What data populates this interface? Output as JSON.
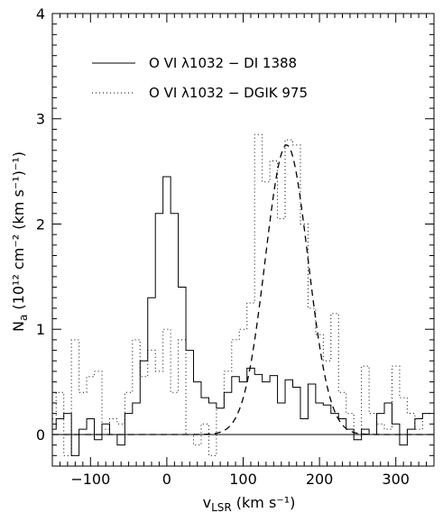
{
  "chart_data": {
    "type": "line",
    "xlim": [
      -150,
      350
    ],
    "ylim": [
      -0.3,
      4.0
    ],
    "x_ticks": [
      "-100",
      "0",
      "100",
      "200",
      "300"
    ],
    "y_ticks": [
      "0",
      "1",
      "2",
      "3",
      "4"
    ],
    "xlabel": {
      "main": "v",
      "sub": "LSR",
      "rest": " (km s⁻¹)"
    },
    "ylabel": {
      "main": "N",
      "sub": "a",
      "rest": " (10¹² cm⁻² (km s⁻¹)⁻¹)"
    },
    "legend": {
      "placement": "top-left"
    },
    "series": [
      {
        "name": "O VI λ1032 − DI 1388",
        "style": "solid",
        "x": [
          -150,
          -140,
          -130,
          -120,
          -110,
          -100,
          -90,
          -80,
          -70,
          -60,
          -50,
          -40,
          -30,
          -20,
          -10,
          0,
          10,
          20,
          30,
          40,
          50,
          60,
          70,
          80,
          90,
          100,
          110,
          120,
          130,
          140,
          150,
          160,
          170,
          180,
          190,
          200,
          210,
          220,
          230,
          240,
          250,
          260,
          270,
          280,
          290,
          300,
          310,
          320,
          330,
          340
        ],
        "y": [
          0.05,
          0.15,
          0.2,
          -0.2,
          0.05,
          0.15,
          -0.05,
          0.1,
          0.0,
          -0.1,
          0.2,
          0.3,
          0.7,
          1.3,
          2.1,
          2.45,
          2.1,
          1.4,
          0.8,
          0.5,
          0.35,
          0.3,
          0.25,
          0.4,
          0.55,
          0.5,
          0.63,
          0.57,
          0.5,
          0.56,
          0.3,
          0.52,
          0.45,
          0.15,
          0.48,
          0.3,
          0.28,
          0.2,
          0.15,
          0.05,
          -0.05,
          0.05,
          0.0,
          0.2,
          0.3,
          0.1,
          -0.1,
          0.05,
          0.15,
          0.2
        ]
      },
      {
        "name": "O VI λ1032 − DGIK 975",
        "style": "dotted",
        "x": [
          -150,
          -140,
          -130,
          -120,
          -110,
          -100,
          -90,
          -80,
          -70,
          -60,
          -50,
          -40,
          -30,
          -20,
          -10,
          0,
          10,
          20,
          30,
          40,
          50,
          60,
          70,
          80,
          90,
          100,
          110,
          120,
          130,
          140,
          150,
          160,
          170,
          180,
          190,
          200,
          210,
          220,
          230,
          240,
          250,
          260,
          270,
          280,
          290,
          300,
          310,
          320,
          330,
          340
        ],
        "y": [
          0.15,
          0.4,
          -0.2,
          0.9,
          0.4,
          0.55,
          0.6,
          0.05,
          0.15,
          0.1,
          0.4,
          0.9,
          0.55,
          0.8,
          0.6,
          1.0,
          0.4,
          0.9,
          0.0,
          -0.1,
          0.1,
          -0.2,
          0.25,
          0.6,
          0.9,
          1.0,
          1.25,
          2.85,
          2.4,
          2.6,
          2.05,
          2.8,
          2.75,
          2.0,
          1.2,
          0.95,
          0.7,
          1.15,
          0.4,
          0.2,
          -0.05,
          0.65,
          0.2,
          0.1,
          0.05,
          0.65,
          0.35,
          0.2,
          0.05,
          0.2
        ]
      },
      {
        "name": "",
        "style": "dashed",
        "gaussian": {
          "amplitude": 2.75,
          "center": 157,
          "sigma": 28
        }
      }
    ]
  }
}
